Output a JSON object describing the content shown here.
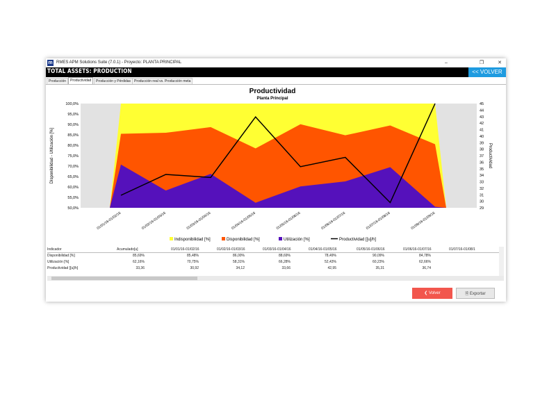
{
  "window": {
    "title": "RMES APM Solutions Suite (7.0.1) - Proyecto: PLANTA PRINCIPAL"
  },
  "header": {
    "title": "TOTAL ASSETS: PRODUCTION",
    "volver_label": "<< VOLVER"
  },
  "tabs": [
    {
      "label": "Producción"
    },
    {
      "label": "Productividad"
    },
    {
      "label": "Producción y Pérdidas"
    },
    {
      "label": "Producción real vs. Producción meta"
    }
  ],
  "chart_data": {
    "type": "area",
    "title": "Productividad",
    "subtitle": "Planta Principal",
    "ylabel_left": "Disponibilidad - Utilización [%]",
    "ylabel_right": "Productividad",
    "ylim_left": [
      50,
      100
    ],
    "ylim_right": [
      29,
      45
    ],
    "left_ticks": [
      "100,0%",
      "95,0%",
      "90,0%",
      "85,0%",
      "80,0%",
      "75,0%",
      "70,0%",
      "65,0%",
      "60,0%",
      "55,0%",
      "50,0%"
    ],
    "right_ticks": [
      "45",
      "44",
      "43",
      "42",
      "41",
      "40",
      "39",
      "38",
      "37",
      "36",
      "35",
      "34",
      "33",
      "32",
      "31",
      "30",
      "29"
    ],
    "categories": [
      "01/01/16-01/02/16",
      "01/02/16-01/03/16",
      "01/03/16-01/04/16",
      "01/04/16-01/05/16",
      "01/05/16-01/06/16",
      "01/06/16-01/07/16",
      "01/07/16-01/08/16",
      "01/08/16-01/09/16"
    ],
    "series": [
      {
        "name": "Indisponibilidad [%]",
        "color": "#ffff33",
        "values": [
          100,
          100,
          100,
          100,
          100,
          100,
          100,
          100
        ]
      },
      {
        "name": "Disponibilidad [%]",
        "color": "#ff5500",
        "values": [
          85.48,
          86.0,
          88.69,
          78.49,
          90.09,
          84.78,
          89.5,
          80.5
        ]
      },
      {
        "name": "Utilización [%]",
        "color": "#5511bb",
        "values": [
          70.75,
          58.31,
          66.28,
          52.43,
          60.23,
          62.66,
          69.5,
          50.5
        ]
      },
      {
        "name": "Productividad [[u]/h]",
        "color": "#000000",
        "values": [
          30.92,
          34.12,
          33.66,
          42.95,
          35.31,
          36.74,
          29.8,
          45.0
        ]
      }
    ],
    "legend": "bottom"
  },
  "table": {
    "headers": [
      "Indicador",
      "Acumulado[u]",
      "01/01/16-01/02/16",
      "01/02/16-01/03/16",
      "01/03/16-01/04/16",
      "01/04/16-01/05/16",
      "01/05/16-01/06/16",
      "01/06/16-01/07/16",
      "01/07/16-01/08/1"
    ],
    "rows": [
      [
        "Disponibilidad [%]",
        "85,69%",
        "85,48%",
        "86,00%",
        "88,69%",
        "78,49%",
        "90,09%",
        "84,78%",
        ""
      ],
      [
        "Utilización [%]",
        "62,16%",
        "70,75%",
        "58,31%",
        "66,28%",
        "52,43%",
        "60,23%",
        "62,66%",
        ""
      ],
      [
        "Productividad [[u]/h]",
        "33,36",
        "30,92",
        "34,12",
        "33,66",
        "42,95",
        "35,31",
        "36,74",
        ""
      ]
    ]
  },
  "buttons": {
    "volver": "Volver",
    "exportar": "Exportar"
  }
}
